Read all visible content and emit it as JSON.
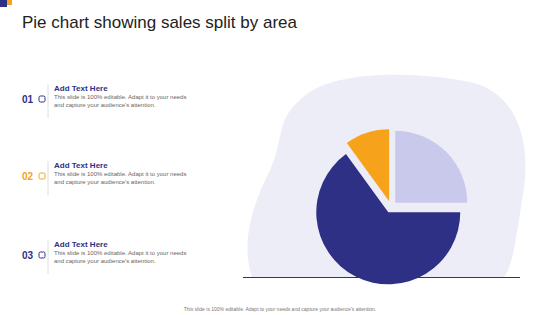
{
  "chart_data": {
    "type": "pie",
    "title": "Pie chart showing sales split by area",
    "categories": [
      null,
      null,
      null
    ],
    "values": [
      25,
      65,
      10
    ],
    "colors": [
      "#c9c9eb",
      "#2e3085",
      "#f7a21b"
    ]
  },
  "items": [
    {
      "number": "01",
      "heading": "Add Text Here",
      "lines": [
        "This slide is 100% editable. Adapt it to your needs",
        "and capture your audience's attention."
      ]
    },
    {
      "number": "02",
      "heading": "Add Text Here",
      "lines": [
        "This slide is 100% editable. Adapt it to your needs",
        "and capture your audience's attention."
      ]
    },
    {
      "number": "03",
      "heading": "Add Text Here",
      "lines": [
        "This slide is 100% editable. Adapt it to your needs",
        "and capture your audience's attention."
      ]
    }
  ],
  "footer": "This slide is 100% editable. Adapt to your needs and capture your audience's attention."
}
